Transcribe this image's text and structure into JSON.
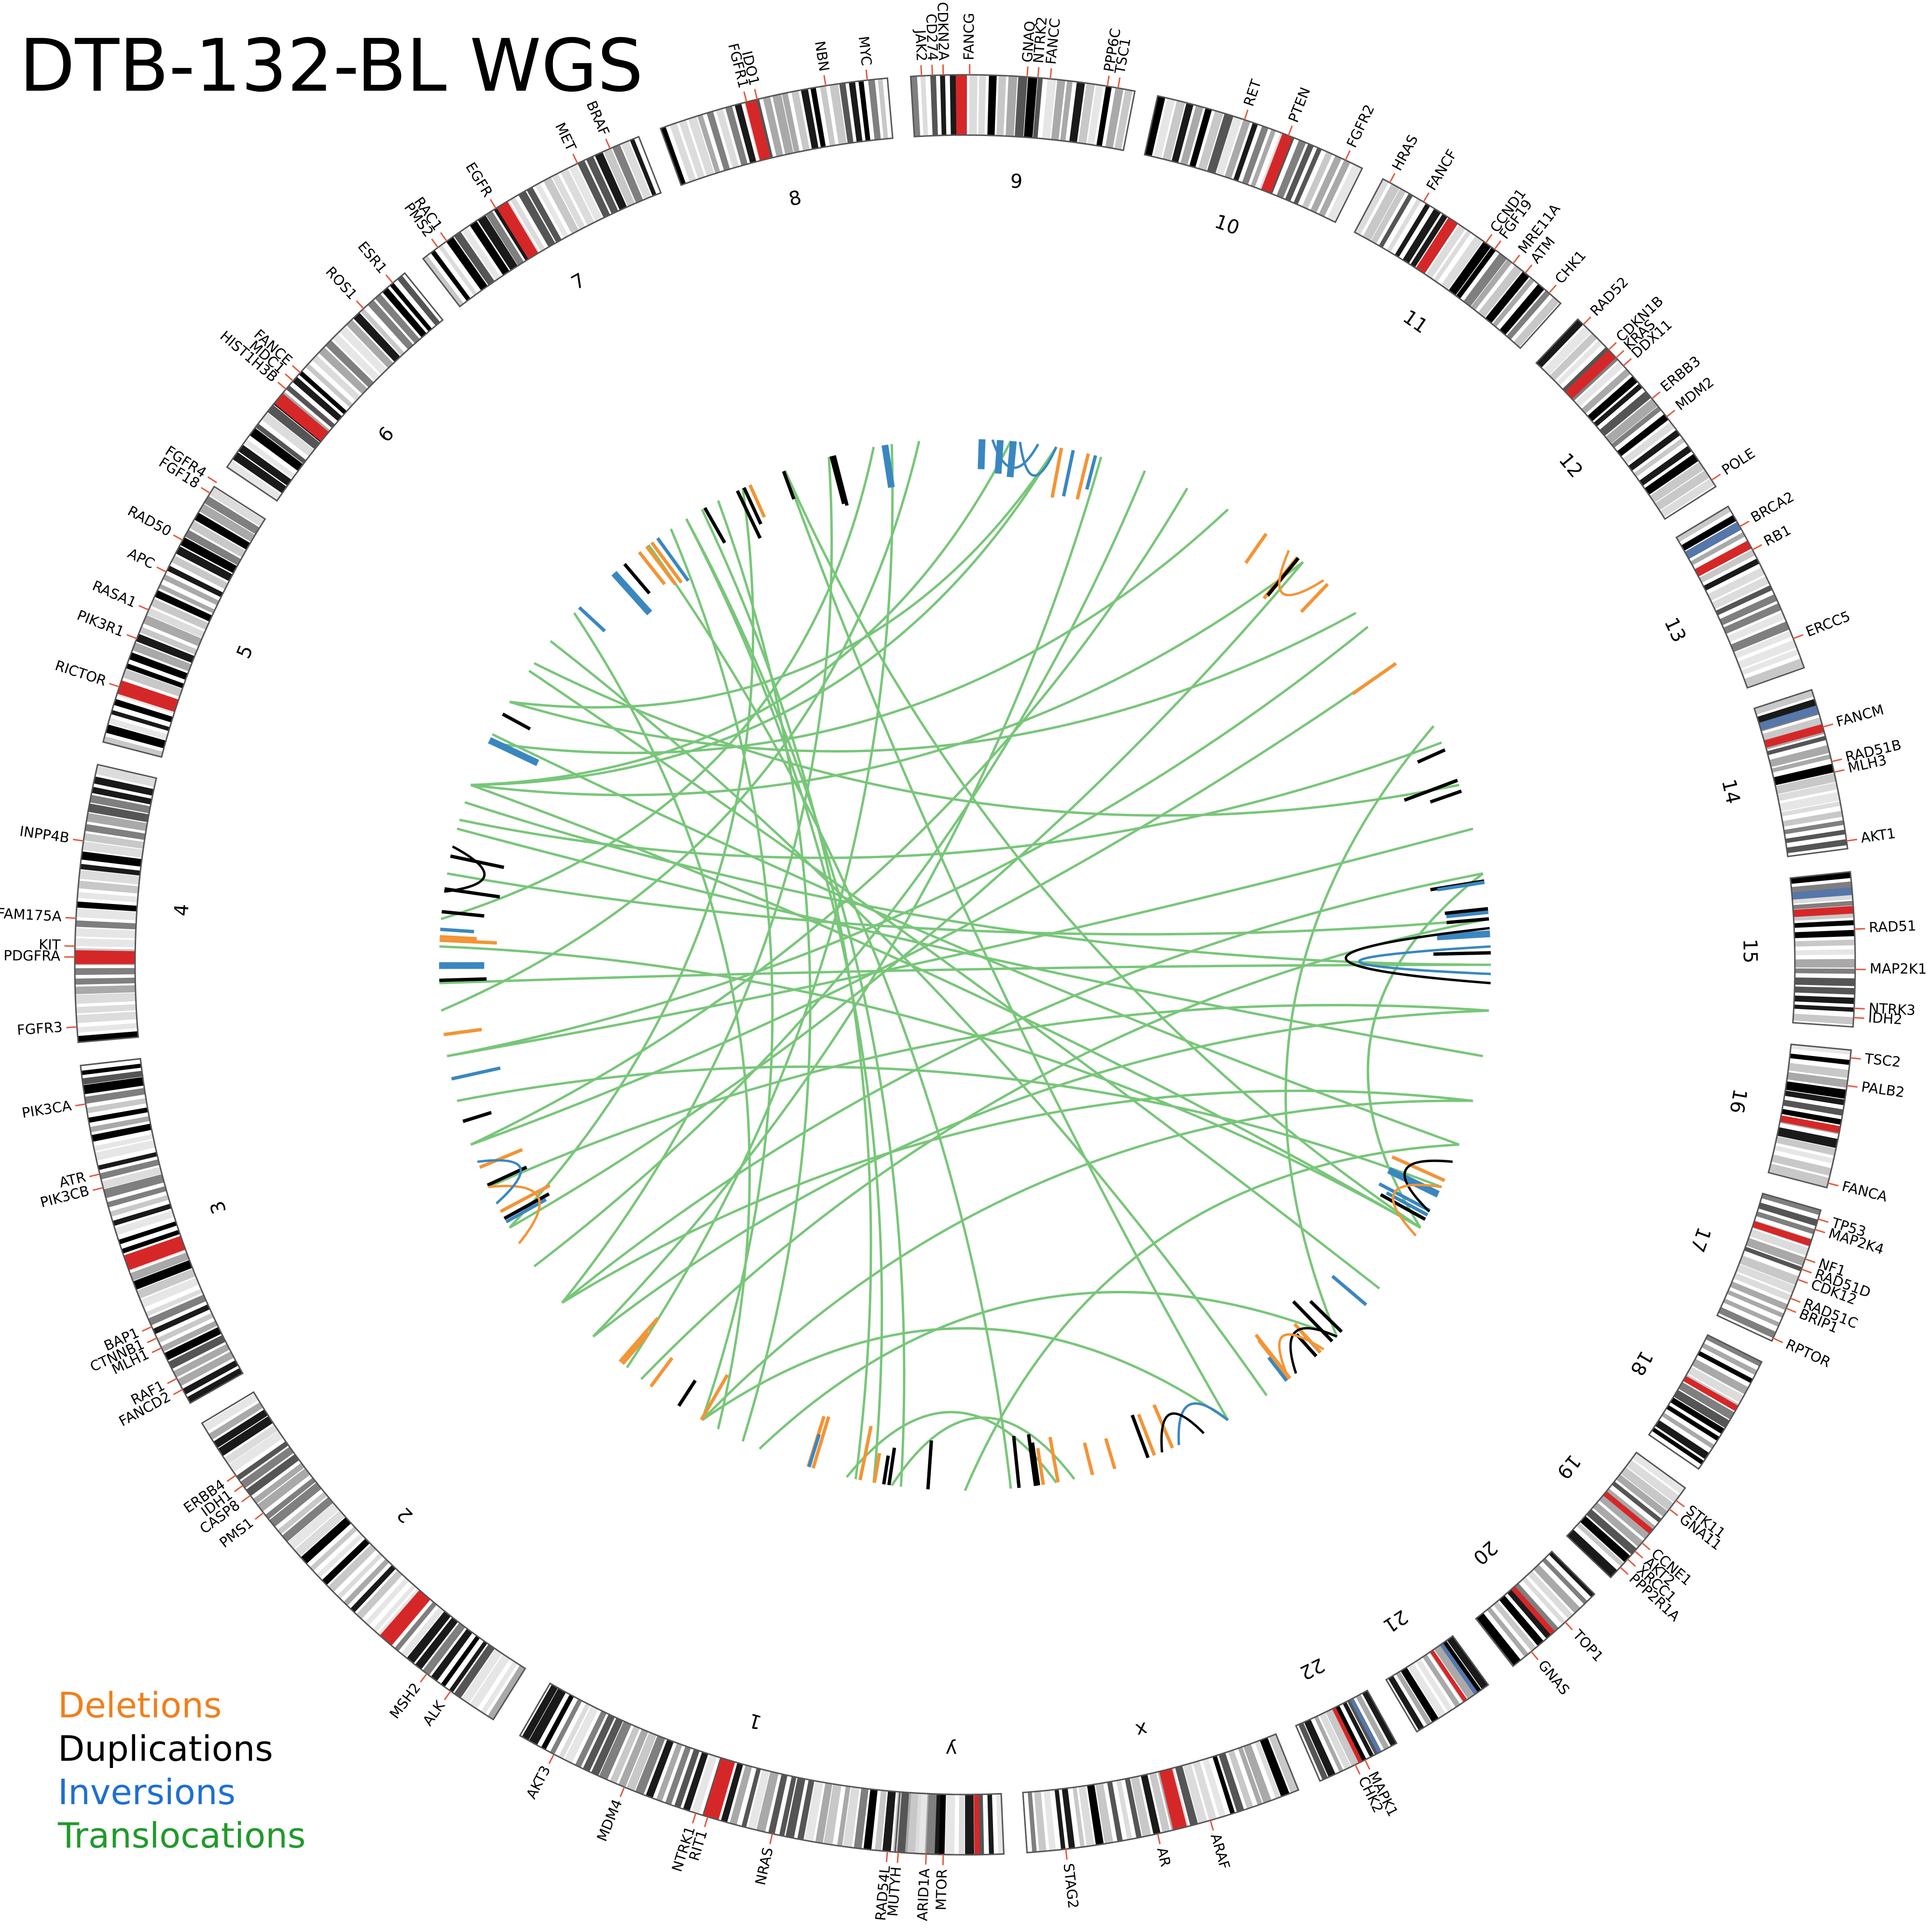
{
  "title": "DTB-132-BL WGS",
  "legend": [
    {
      "label": "Deletions",
      "color": "#f07f1d"
    },
    {
      "label": "Duplications",
      "color": "#000000"
    },
    {
      "label": "Inversions",
      "color": "#1f6fd0"
    },
    {
      "label": "Translocations",
      "color": "#1f9a2a"
    }
  ],
  "sv_colors": {
    "deletion": "#f39436",
    "duplication": "#000000",
    "inversion": "#3a87c0",
    "translocation": "#78c679"
  },
  "chromosomes": [
    {
      "name": "1",
      "start": 91,
      "end": 120,
      "genes": [
        [
          "MTOR",
          91.4
        ],
        [
          "ARID1A",
          92.5
        ],
        [
          "MUTYH",
          94.3
        ],
        [
          "RAD54L",
          95.0
        ],
        [
          "NRAS",
          102.5
        ],
        [
          "RIT1",
          106.8
        ],
        [
          "NTRK1",
          107.6
        ],
        [
          "MDM4",
          112.5
        ],
        [
          "AKT3",
          117.5
        ]
      ],
      "red": [
        0.52
      ]
    },
    {
      "name": "2",
      "start": 122,
      "end": 149,
      "genes": [
        [
          "ALK",
          125.3
        ],
        [
          "MSH2",
          127.2
        ],
        [
          "PMS1",
          142.0
        ],
        [
          "CASP8",
          143.4
        ],
        [
          "IDH1",
          144.2
        ],
        [
          "ERBB4",
          145.0
        ]
      ],
      "red": [
        0.3
      ]
    },
    {
      "name": "3",
      "start": 150.5,
      "end": 173.5,
      "genes": [
        [
          "FANCD2",
          151.5
        ],
        [
          "RAF1",
          152.3
        ],
        [
          "MLH1",
          154.5
        ],
        [
          "CTNNB1",
          155.2
        ],
        [
          "BAP1",
          156.0
        ],
        [
          "PIK3CB",
          165.5
        ],
        [
          "ATR",
          166.4
        ],
        [
          "PIK3CA",
          171.0
        ]
      ],
      "red": [
        0.41
      ]
    },
    {
      "name": "4",
      "start": 175,
      "end": 193,
      "genes": [
        [
          "FGFR3",
          176.0
        ],
        [
          "PDGFRA",
          180.5
        ],
        [
          "KIT",
          181.2
        ],
        [
          "FAM175A",
          183.0
        ],
        [
          "INPP4B",
          188.0
        ]
      ],
      "red": [
        0.28
      ]
    },
    {
      "name": "5",
      "start": 194.5,
      "end": 212.5,
      "genes": [
        [
          "RICTOR",
          198.2
        ],
        [
          "PIK3R1",
          201.5
        ],
        [
          "RASA1",
          203.5
        ],
        [
          "APC",
          206.2
        ],
        [
          "RAD50",
          208.5
        ],
        [
          "FGF18",
          212.0
        ],
        [
          "FGFR4",
          212.8
        ]
      ],
      "red": [
        0.18
      ]
    },
    {
      "name": "6",
      "start": 214,
      "end": 231,
      "genes": [
        [
          "HIST1H3B",
          220.3
        ],
        [
          "MDC1",
          221.0
        ],
        [
          "FANCE",
          221.7
        ],
        [
          "ROS1",
          227.5
        ],
        [
          "ESR1",
          230.0
        ]
      ],
      "red": [
        0.3
      ]
    },
    {
      "name": "7",
      "start": 232.5,
      "end": 248.5,
      "genes": [
        [
          "PMS2",
          233.7
        ],
        [
          "RAC1",
          234.4
        ],
        [
          "EGFR",
          238.2
        ],
        [
          "MET",
          244.2
        ],
        [
          "BRAF",
          246.5
        ]
      ],
      "red": [
        0.36
      ]
    },
    {
      "name": "8",
      "start": 250,
      "end": 265,
      "genes": [
        [
          "FGFR1",
          255.8
        ],
        [
          "IDO1",
          256.5
        ],
        [
          "NBN",
          261.0
        ],
        [
          "MYC",
          263.7
        ]
      ],
      "red": [
        0.38
      ]
    },
    {
      "name": "9",
      "start": 266.5,
      "end": 281,
      "genes": [
        [
          "JAK2",
          267.2
        ],
        [
          "CD274",
          267.9
        ],
        [
          "CDKN2A",
          268.6
        ],
        [
          "FANCG",
          270.3
        ],
        [
          "GNAQ",
          274.0
        ],
        [
          "NTRK2",
          274.7
        ],
        [
          "FANCC",
          275.5
        ],
        [
          "PPP6C",
          279.2
        ],
        [
          "TSC1",
          279.9
        ]
      ],
      "red": [
        0.2
      ]
    },
    {
      "name": "10",
      "start": 282.5,
      "end": 296.5,
      "genes": [
        [
          "RET",
          288.3
        ],
        [
          "PTEN",
          291.3
        ],
        [
          "FGFR2",
          295.3
        ]
      ],
      "red": [
        0.6
      ]
    },
    {
      "name": "11",
      "start": 298,
      "end": 312,
      "genes": [
        [
          "HRAS",
          298.5
        ],
        [
          "FANCF",
          301.0
        ],
        [
          "CCND1",
          305.8
        ],
        [
          "FGF19",
          306.5
        ],
        [
          "MRE11A",
          308.0
        ],
        [
          "ATM",
          309.0
        ],
        [
          "CHK1",
          311.0
        ]
      ],
      "red": [
        0.35
      ]
    },
    {
      "name": "12",
      "start": 313.5,
      "end": 327.5,
      "genes": [
        [
          "RAD52",
          314.0
        ],
        [
          "CDKN1B",
          316.3
        ],
        [
          "KRAS",
          317.0
        ],
        [
          "DDX11",
          317.7
        ],
        [
          "ERBB3",
          320.5
        ],
        [
          "MDM2",
          322.0
        ],
        [
          "POLE",
          327.0
        ]
      ],
      "red": [
        0.2
      ]
    },
    {
      "name": "13",
      "start": 329,
      "end": 340.5,
      "genes": [
        [
          "BRCA2",
          330.5
        ],
        [
          "RB1",
          332.2
        ],
        [
          "ERCC5",
          338.5
        ]
      ],
      "red": [
        0.22
      ],
      "blue": [
        0.1
      ]
    },
    {
      "name": "14",
      "start": 342,
      "end": 352.5,
      "genes": [
        [
          "FANCM",
          344.5
        ],
        [
          "RAD51B",
          346.8
        ],
        [
          "MLH3",
          347.5
        ],
        [
          "AKT1",
          352.0
        ]
      ],
      "red": [
        0.22
      ],
      "blue": [
        0.1
      ]
    },
    {
      "name": "15",
      "start": 354,
      "end": 364,
      "genes": [
        [
          "RAD51",
          357.7
        ],
        [
          "MAP2K1",
          360.3
        ],
        [
          "NTRK3",
          362.8
        ],
        [
          "IDH2",
          363.4
        ]
      ],
      "red": [
        0.22
      ],
      "blue": [
        0.1
      ]
    },
    {
      "name": "16",
      "start": 365.5,
      "end": 374.5,
      "genes": [
        [
          "TSC2",
          366.0
        ],
        [
          "PALB2",
          367.8
        ],
        [
          "FANCA",
          374.2
        ]
      ],
      "red": [
        0.55
      ]
    },
    {
      "name": "17",
      "start": 376,
      "end": 385,
      "genes": [
        [
          "TP53",
          376.6
        ],
        [
          "MAP2K4",
          377.3
        ],
        [
          "NF1",
          379.3
        ],
        [
          "RAD51D",
          380.0
        ],
        [
          "CDK12",
          380.7
        ],
        [
          "RAD51C",
          382.0
        ],
        [
          "BRIP1",
          382.7
        ],
        [
          "RPTOR",
          384.8
        ]
      ],
      "red": [
        0.22
      ]
    },
    {
      "name": "18",
      "start": 386.5,
      "end": 394.5,
      "genes": [],
      "red": [
        0.4
      ]
    },
    {
      "name": "19",
      "start": 396,
      "end": 403.5,
      "genes": [
        [
          "STK11",
          397.0
        ],
        [
          "GNA11",
          397.7
        ],
        [
          "CCNE1",
          400.5
        ],
        [
          "AKT2",
          401.2
        ],
        [
          "XRCC1",
          401.9
        ],
        [
          "PPP2R1A",
          402.6
        ]
      ],
      "red": [
        0.45
      ]
    },
    {
      "name": "20",
      "start": 405,
      "end": 412,
      "genes": [
        [
          "TOP1",
          407.6
        ],
        [
          "GNAS",
          410.5
        ]
      ],
      "red": [
        0.5
      ]
    },
    {
      "name": "21",
      "start": 414,
      "end": 419.5,
      "genes": [],
      "red": [
        0.3
      ],
      "blue": [
        0.15
      ]
    },
    {
      "name": "22",
      "start": 421,
      "end": 426.5,
      "genes": [
        [
          "MAPK1",
          423.3
        ],
        [
          "CHK2",
          424.0
        ]
      ],
      "red": [
        0.45
      ],
      "blue": [
        0.2
      ]
    },
    {
      "name": "x",
      "start": 428,
      "end": 446,
      "genes": [
        [
          "ARAF",
          434.0
        ],
        [
          "AR",
          437.5
        ],
        [
          "STAG2",
          443.5
        ]
      ],
      "red": [
        0.42
      ]
    },
    {
      "name": "y",
      "start": 447.5,
      "end": 454.5,
      "genes": [],
      "red": [
        0.22
      ]
    }
  ]
}
